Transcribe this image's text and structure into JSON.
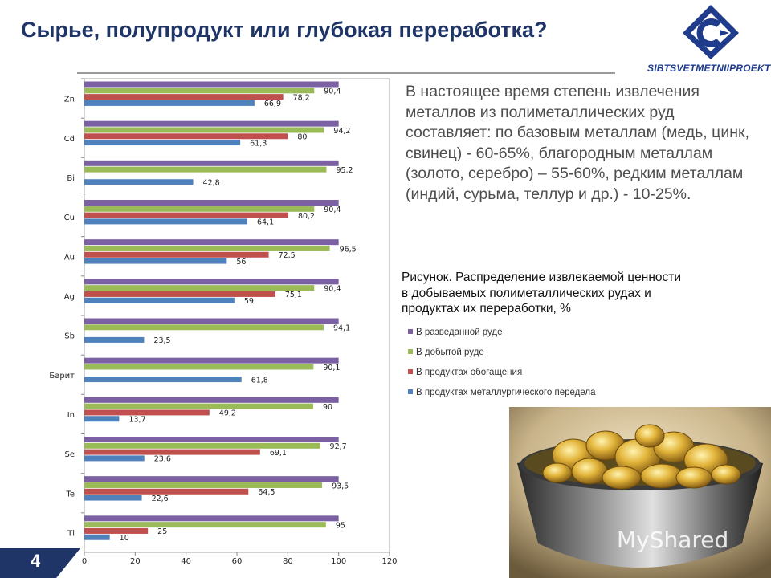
{
  "header": {
    "title": "Сырье, полупродукт или глубокая переработка?",
    "logo_text": "SIBTSVETMETNIIPROEKT"
  },
  "description": "В настоящее время степень извлечения металлов из полиметаллических руд составляет: по базовым металлам (медь, цинк, свинец) - 60-65%, благородным металлам (золото, серебро) – 55-60%, редким металлам (индий, сурьма, теллур и др.) - 10-25%.",
  "caption": "Рисунок. Распределение извлекаемой ценности в добываемых полиметаллических рудах и продуктах их переработки, %",
  "footer": {
    "page_number": "4",
    "watermark": "MyShared"
  },
  "chart_data": {
    "type": "bar",
    "orientation": "horizontal",
    "categories": [
      "Zn",
      "Cd",
      "Bi",
      "Cu",
      "Au",
      "Ag",
      "Sb",
      "Барит",
      "In",
      "Se",
      "Te",
      "Tl"
    ],
    "series": [
      {
        "name": "В разведанной руде",
        "color": "#7b61a4",
        "values": [
          100,
          100,
          100,
          100,
          100,
          100,
          100,
          100,
          100,
          100,
          100,
          100
        ],
        "labels": [
          "",
          "",
          "",
          "",
          "",
          "",
          "",
          "",
          "",
          "",
          "",
          ""
        ]
      },
      {
        "name": "В добытой руде",
        "color": "#9bbb59",
        "values": [
          90.4,
          94.2,
          95.2,
          90.4,
          96.5,
          90.4,
          94.1,
          90.1,
          90,
          92.7,
          93.5,
          95
        ],
        "labels": [
          "90,4",
          "94,2",
          "95,2",
          "90,4",
          "96,5",
          "90,4",
          "94,1",
          "90,1",
          "90",
          "92,7",
          "93,5",
          "95"
        ]
      },
      {
        "name": "В продуктах обогащения",
        "color": "#c0504d",
        "values": [
          78.2,
          80,
          null,
          80.2,
          72.5,
          75.1,
          null,
          null,
          49.2,
          69.1,
          64.5,
          25
        ],
        "labels": [
          "78,2",
          "80",
          "",
          "80,2",
          "72,5",
          "75,1",
          "",
          "",
          "49,2",
          "69,1",
          "64,5",
          "25"
        ]
      },
      {
        "name": "В продуктах металлургического передела",
        "color": "#4f81bd",
        "values": [
          66.9,
          61.3,
          42.8,
          64.1,
          56,
          59,
          23.5,
          61.8,
          13.7,
          23.6,
          22.6,
          10
        ],
        "labels": [
          "66,9",
          "61,3",
          "42,8",
          "64,1",
          "56",
          "59",
          "23,5",
          "61,8",
          "13,7",
          "23,6",
          "22,6",
          "10"
        ]
      }
    ],
    "xlim": [
      0,
      120
    ],
    "xticks": [
      "0",
      "20",
      "40",
      "60",
      "80",
      "100",
      "120"
    ],
    "grid": false,
    "legend_position": "right"
  }
}
